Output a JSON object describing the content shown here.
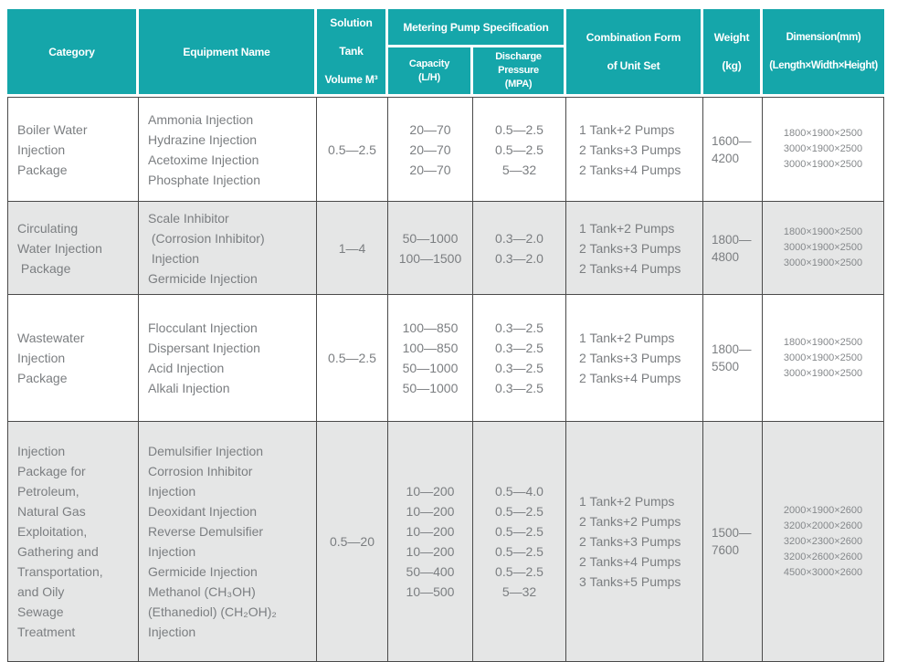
{
  "accent_color": "#15a6aa",
  "grid_color": "#4a4a4a",
  "alt_row_bg": "#e5e6e6",
  "header": {
    "category": "Category",
    "equipment_name": "Equipment Name",
    "solution_tank": "Solution Tank\nVolume M³",
    "metering_pump": "Metering Pump Specification",
    "capacity": "Capacity\n(L/H)",
    "discharge_pressure": "Discharge Pressure\n(MPA)",
    "combination": "Combination Form\nof Unit Set",
    "weight": "Weight\n(kg)",
    "dimension": "Dimension(mm)\n(Length×Width×Height)"
  },
  "rows": [
    {
      "shaded": false,
      "category": "Boiler Water\nInjection\nPackage",
      "equipment": "Ammonia Injection\nHydrazine Injection\nAcetoxime Injection\nPhosphate Injection",
      "tank_volume": "0.5—2.5",
      "capacity": "20—70\n20—70\n20—70",
      "discharge": "0.5—2.5\n0.5—2.5\n5—32",
      "combination": "1 Tank+2 Pumps\n2 Tanks+3 Pumps\n2 Tanks+4 Pumps",
      "weight": "1600—\n4200",
      "dimension": "1800×1900×2500\n3000×1900×2500\n3000×1900×2500"
    },
    {
      "shaded": true,
      "category": "Circulating\nWater Injection\n Package",
      "equipment": "Scale Inhibitor\n (Corrosion Inhibitor)\n Injection\nGermicide Injection",
      "tank_volume": "1—4",
      "capacity": "50—1000\n100—1500",
      "discharge": "0.3—2.0\n0.3—2.0",
      "combination": "1 Tank+2 Pumps\n2 Tanks+3 Pumps\n2 Tanks+4 Pumps",
      "weight": "1800—\n4800",
      "dimension": "1800×1900×2500\n3000×1900×2500\n3000×1900×2500"
    },
    {
      "shaded": false,
      "category": "Wastewater\nInjection\nPackage",
      "equipment": "Flocculant Injection\nDispersant Injection\nAcid Injection\nAlkali Injection",
      "tank_volume": "0.5—2.5",
      "capacity": "100—850\n100—850\n50—1000\n50—1000",
      "discharge": "0.3—2.5\n0.3—2.5\n0.3—2.5\n0.3—2.5",
      "combination": "1 Tank+2 Pumps\n2 Tanks+3 Pumps\n2 Tanks+4 Pumps",
      "weight": "1800—\n5500",
      "dimension": "1800×1900×2500\n3000×1900×2500\n3000×1900×2500"
    },
    {
      "shaded": true,
      "category": "Injection\nPackage for\nPetroleum,\nNatural Gas\nExploitation,\nGathering and\nTransportation,\nand Oily\nSewage\nTreatment",
      "equipment": "Demulsifier Injection\nCorrosion Inhibitor\nInjection\nDeoxidant Injection\nReverse Demulsifier\nInjection\nGermicide Injection\nMethanol (CH₃OH)\n(Ethanediol) (CH₂OH)₂\nInjection",
      "tank_volume": "0.5—20",
      "capacity": "10—200\n10—200\n10—200\n10—200\n50—400\n10—500",
      "discharge": "0.5—4.0\n0.5—2.5\n0.5—2.5\n0.5—2.5\n0.5—2.5\n5—32",
      "combination": "1 Tank+2 Pumps\n2 Tanks+2 Pumps\n2 Tanks+3 Pumps\n2 Tanks+4 Pumps\n3 Tanks+5 Pumps",
      "weight": "1500—\n7600",
      "dimension": "2000×1900×2600\n3200×2000×2600\n3200×2300×2600\n3200×2600×2600\n4500×3000×2600"
    }
  ]
}
